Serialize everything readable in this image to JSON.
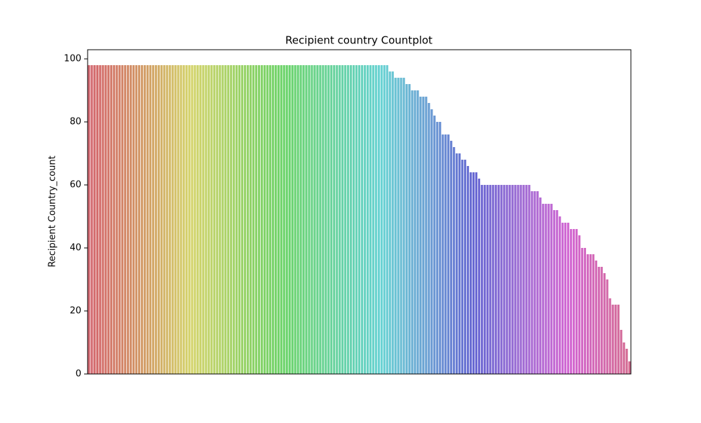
{
  "chart_data": {
    "type": "bar",
    "title": "Recipient country Countplot",
    "y_label": "Recipient Country_count",
    "palette": "husl",
    "categories": [
      null,
      null,
      null,
      null,
      null,
      null,
      null,
      null,
      null,
      null,
      null,
      null,
      null,
      null,
      null,
      null,
      null,
      null,
      null,
      null,
      null,
      null,
      null,
      null,
      null,
      null,
      null,
      null,
      null,
      null,
      null,
      null,
      null,
      null,
      null,
      null,
      null,
      null,
      null,
      null,
      null,
      null,
      null,
      null,
      null,
      null,
      null,
      null,
      null,
      null,
      null,
      null,
      null,
      null,
      null,
      null,
      null,
      null,
      null,
      null,
      null,
      null,
      null,
      null,
      null,
      null,
      null,
      null,
      null,
      null,
      null,
      null,
      null,
      null,
      null,
      null,
      null,
      null,
      null,
      null,
      null,
      null,
      null,
      null,
      null,
      null,
      null,
      null,
      null,
      null,
      null,
      null,
      null,
      null,
      null,
      null,
      null,
      null,
      null,
      null,
      null,
      null,
      null,
      null,
      null,
      null,
      null,
      null,
      null,
      null,
      null,
      null,
      null,
      null,
      null,
      null,
      null,
      null,
      null,
      null,
      null,
      null,
      null,
      null,
      null,
      null,
      null,
      null,
      null,
      null,
      null,
      null,
      null,
      null,
      null,
      null,
      null,
      null,
      null,
      null,
      null,
      null,
      null,
      null,
      null,
      null,
      null,
      null,
      null,
      null,
      null,
      null,
      null,
      null,
      null,
      null,
      null,
      null,
      null,
      null,
      null,
      null,
      null,
      null,
      null,
      null,
      null,
      null,
      null,
      null,
      null,
      null,
      null,
      null,
      null,
      null,
      null,
      null,
      null,
      null,
      null,
      null,
      null,
      null,
      null,
      null,
      null,
      null,
      null,
      null,
      null,
      null,
      null,
      null,
      null
    ],
    "values": [
      98,
      98,
      98,
      98,
      98,
      98,
      98,
      98,
      98,
      98,
      98,
      98,
      98,
      98,
      98,
      98,
      98,
      98,
      98,
      98,
      98,
      98,
      98,
      98,
      98,
      98,
      98,
      98,
      98,
      98,
      98,
      98,
      98,
      98,
      98,
      98,
      98,
      98,
      98,
      98,
      98,
      98,
      98,
      98,
      98,
      98,
      98,
      98,
      98,
      98,
      98,
      98,
      98,
      98,
      98,
      98,
      98,
      98,
      98,
      98,
      98,
      98,
      98,
      98,
      98,
      98,
      98,
      98,
      98,
      98,
      98,
      98,
      98,
      98,
      98,
      98,
      98,
      98,
      98,
      98,
      98,
      98,
      98,
      98,
      98,
      98,
      98,
      98,
      98,
      98,
      98,
      98,
      98,
      98,
      98,
      98,
      98,
      98,
      98,
      98,
      98,
      98,
      98,
      98,
      98,
      98,
      98,
      98,
      96,
      96,
      94,
      94,
      94,
      94,
      92,
      92,
      90,
      90,
      90,
      88,
      88,
      88,
      86,
      84,
      82,
      80,
      80,
      76,
      76,
      76,
      74,
      72,
      70,
      70,
      68,
      68,
      66,
      64,
      64,
      64,
      62,
      60,
      60,
      60,
      60,
      60,
      60,
      60,
      60,
      60,
      60,
      60,
      60,
      60,
      60,
      60,
      60,
      60,
      60,
      58,
      58,
      58,
      56,
      54,
      54,
      54,
      54,
      52,
      52,
      50,
      48,
      48,
      48,
      46,
      46,
      46,
      44,
      40,
      40,
      38,
      38,
      38,
      36,
      34,
      34,
      32,
      30,
      24,
      22,
      22,
      22,
      14,
      10,
      8,
      4
    ],
    "ylim": [
      0,
      102.9
    ],
    "yticks": [
      0,
      20,
      40,
      60,
      80,
      100
    ]
  }
}
